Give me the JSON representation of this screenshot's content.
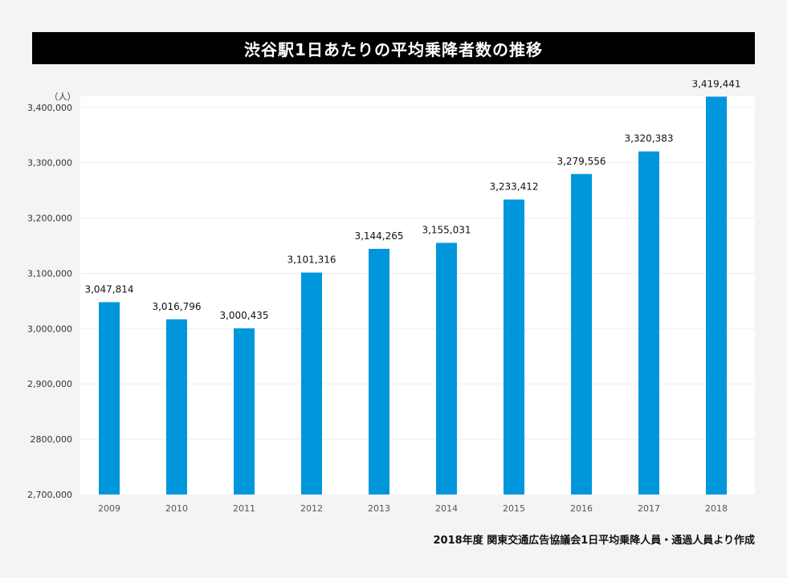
{
  "title": "渋谷駅1日あたりの平均乗降者数の推移",
  "source": "2018年度 関東交通広告協議会1日平均乗降人員・通過人員より作成",
  "chart_data": {
    "type": "bar",
    "title": "渋谷駅1日あたりの平均乗降者数の推移",
    "ylabel": "（人）",
    "xlabel": "",
    "categories": [
      "2009",
      "2010",
      "2011",
      "2012",
      "2013",
      "2014",
      "2015",
      "2016",
      "2017",
      "2018"
    ],
    "values": [
      3047814,
      3016796,
      3000435,
      3101316,
      3144265,
      3155031,
      3233412,
      3279556,
      3320383,
      3419441
    ],
    "value_labels": [
      "3,047,814",
      "3,016,796",
      "3,000,435",
      "3,101,316",
      "3,144,265",
      "3,155,031",
      "3,233,412",
      "3,279,556",
      "3,320,383",
      "3,419,441"
    ],
    "ylim": [
      2700000,
      3420000
    ],
    "yticks": [
      2700000,
      2800000,
      2900000,
      3000000,
      3100000,
      3200000,
      3300000,
      3400000
    ],
    "ytick_labels": [
      "2,700,000",
      "2800,000",
      "2,900,000",
      "3,000,000",
      "3,100,000",
      "3,200,000",
      "3,300,000",
      "3,400,000"
    ],
    "grid": true,
    "bar_color": "#0096dc",
    "plot_background": "#ffffff",
    "page_background": "#f4f4f4"
  }
}
